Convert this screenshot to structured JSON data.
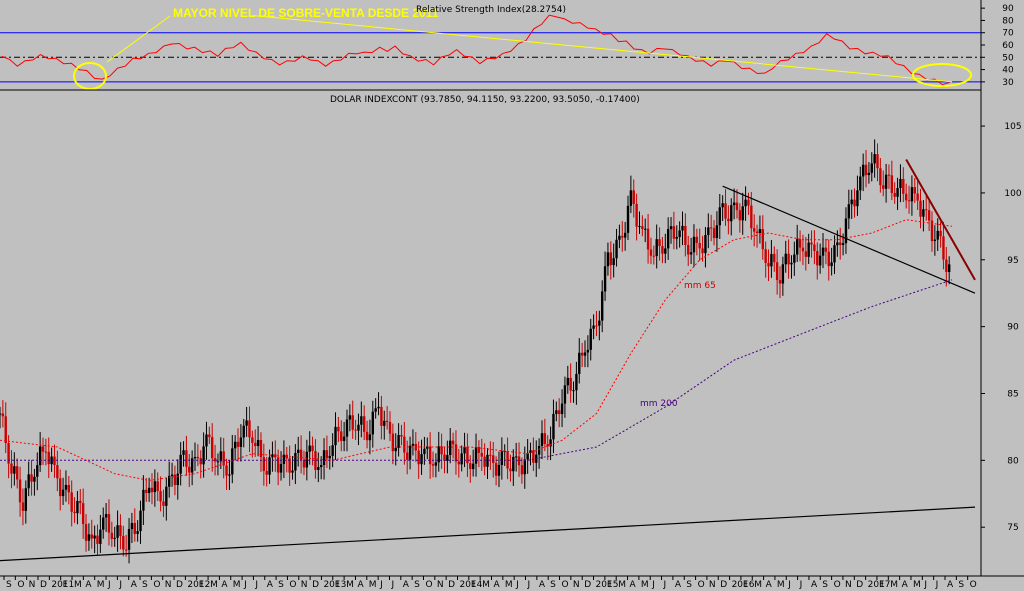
{
  "chart_data": [
    {
      "type": "line",
      "title": "Relative Strength Index(28.2754)",
      "annotation": "MAYOR NIVEL DE SOBRE-VENTA DESDE 2011",
      "ylim": [
        25,
        95
      ],
      "yticks": [
        30,
        40,
        50,
        60,
        70,
        80,
        90
      ],
      "reference_lines": [
        30,
        50,
        70
      ],
      "last_value": 28.2754,
      "colors": {
        "rsi": "#ff0000",
        "trend": "#ffff00",
        "band": "#0000ff",
        "mid": "#000000"
      },
      "series": [
        {
          "values": [
            52,
            47,
            44,
            46,
            49,
            51,
            50,
            48,
            46,
            44,
            41,
            38,
            34,
            31,
            36,
            40,
            44,
            48,
            50,
            52,
            55,
            58,
            62,
            60,
            58,
            57,
            55,
            54,
            52,
            56,
            59,
            61,
            57,
            53,
            50,
            47,
            45,
            46,
            48,
            50,
            49,
            46,
            44,
            46,
            49,
            52,
            54,
            53,
            55,
            57,
            56,
            58,
            54,
            50,
            48,
            47,
            45,
            49,
            53,
            55,
            52,
            49,
            46,
            48,
            50,
            52,
            56,
            60,
            65,
            72,
            78,
            83,
            84,
            80,
            79,
            77,
            75,
            72,
            70,
            68,
            64,
            62,
            58,
            55,
            54,
            56,
            58,
            55,
            53,
            50,
            48,
            46,
            44,
            46,
            48,
            45,
            42,
            40,
            38,
            36,
            42,
            46,
            49,
            52,
            55,
            58,
            63,
            68,
            66,
            62,
            58,
            56,
            54,
            53,
            52,
            50,
            46,
            42,
            38,
            35,
            33,
            31,
            29,
            28.3
          ]
        }
      ],
      "trendline": {
        "x": [
          "2012-06",
          "2017-07"
        ],
        "y": [
          84,
          30
        ]
      }
    },
    {
      "type": "line",
      "title": "DOLAR INDEXCONT (93.7850, 94.1150, 93.2200, 93.5050, -0.17400)",
      "ylim": [
        71.5,
        106.5
      ],
      "yticks": [
        75,
        80,
        85,
        90,
        95,
        100,
        105
      ],
      "x_range": [
        "2010-08",
        "2017-09"
      ],
      "xticks": [
        "S",
        "O",
        "N",
        "D",
        "2011",
        "F",
        "M",
        "A",
        "M",
        "J",
        "J",
        "A",
        "S",
        "O",
        "N",
        "D",
        "2012",
        "F",
        "M",
        "A",
        "M",
        "J",
        "J",
        "A",
        "S",
        "O",
        "N",
        "D",
        "2013",
        "F",
        "M",
        "A",
        "M",
        "J",
        "J",
        "A",
        "S",
        "O",
        "N",
        "D",
        "2014",
        "F",
        "M",
        "A",
        "M",
        "J",
        "J",
        "A",
        "S",
        "O",
        "N",
        "D",
        "2015",
        "F",
        "M",
        "A",
        "M",
        "J",
        "J",
        "A",
        "S",
        "O",
        "N",
        "D",
        "2016",
        "F",
        "M",
        "A",
        "M",
        "J",
        "J",
        "A",
        "S",
        "O",
        "N",
        "D",
        "2017",
        "F",
        "M",
        "A",
        "M",
        "J",
        "J",
        "A",
        "S",
        "O"
      ],
      "colors": {
        "up": "#000000",
        "down": "#cc0000",
        "mm65": "#ff0000",
        "mm200": "#4b0082",
        "trend_long": "#000000",
        "trend_short": "#000000",
        "trend_recent": "#8b0000"
      },
      "series": [
        {
          "name": "DOLAR INDEXCONT",
          "x": [
            "2010-08",
            "2010-09",
            "2010-10",
            "2010-11",
            "2010-12",
            "2011-01",
            "2011-02",
            "2011-03",
            "2011-04",
            "2011-05",
            "2011-06",
            "2011-07",
            "2011-08",
            "2011-09",
            "2011-10",
            "2011-11",
            "2011-12",
            "2012-01",
            "2012-02",
            "2012-03",
            "2012-04",
            "2012-05",
            "2012-06",
            "2012-07",
            "2012-08",
            "2012-09",
            "2012-10",
            "2012-11",
            "2012-12",
            "2013-01",
            "2013-02",
            "2013-03",
            "2013-04",
            "2013-05",
            "2013-06",
            "2013-07",
            "2013-08",
            "2013-09",
            "2013-10",
            "2013-11",
            "2013-12",
            "2014-01",
            "2014-02",
            "2014-03",
            "2014-04",
            "2014-05",
            "2014-06",
            "2014-07",
            "2014-08",
            "2014-09",
            "2014-10",
            "2014-11",
            "2014-12",
            "2015-01",
            "2015-02",
            "2015-03",
            "2015-04",
            "2015-05",
            "2015-06",
            "2015-07",
            "2015-08",
            "2015-09",
            "2015-10",
            "2015-11",
            "2015-12",
            "2016-01",
            "2016-02",
            "2016-03",
            "2016-04",
            "2016-05",
            "2016-06",
            "2016-07",
            "2016-08",
            "2016-09",
            "2016-10",
            "2016-11",
            "2016-12",
            "2017-01",
            "2017-02",
            "2017-03",
            "2017-04",
            "2017-05",
            "2017-06",
            "2017-07"
          ],
          "values": [
            83.5,
            79.5,
            77.0,
            79.5,
            81.0,
            78.5,
            77.0,
            76.0,
            73.5,
            75.5,
            74.5,
            74.0,
            75.5,
            78.5,
            77.0,
            78.5,
            80.0,
            79.5,
            81.5,
            80.0,
            79.5,
            82.5,
            82.0,
            79.5,
            80.0,
            79.5,
            80.0,
            80.5,
            79.5,
            81.5,
            82.5,
            83.0,
            82.0,
            84.0,
            81.5,
            81.0,
            80.5,
            80.5,
            80.0,
            81.0,
            80.5,
            80.0,
            80.5,
            79.5,
            80.0,
            79.5,
            80.0,
            81.0,
            82.0,
            85.0,
            86.0,
            88.5,
            90.0,
            95.0,
            96.0,
            99.5,
            97.0,
            95.5,
            96.5,
            97.5,
            96.0,
            96.0,
            97.0,
            98.5,
            98.5,
            99.0,
            97.0,
            95.0,
            94.0,
            95.5,
            96.0,
            95.5,
            95.0,
            95.5,
            98.5,
            101.0,
            102.5,
            101.0,
            100.5,
            100.0,
            99.5,
            97.5,
            96.0,
            93.5
          ]
        },
        {
          "name": "mm 65",
          "x": [
            "2010-08",
            "2011-01",
            "2011-06",
            "2011-09",
            "2012-01",
            "2012-06",
            "2013-01",
            "2013-06",
            "2014-01",
            "2014-06",
            "2014-09",
            "2014-12",
            "2015-03",
            "2015-06",
            "2015-09",
            "2015-12",
            "2016-03",
            "2016-06",
            "2016-09",
            "2016-12",
            "2017-03",
            "2017-07"
          ],
          "values": [
            81.5,
            81.0,
            79.0,
            78.5,
            79.0,
            80.5,
            80.0,
            81.0,
            81.0,
            80.5,
            81.5,
            83.5,
            88.0,
            92.0,
            95.0,
            96.5,
            97.0,
            96.5,
            96.5,
            97.0,
            98.0,
            97.5
          ]
        },
        {
          "name": "mm 200",
          "x": [
            "2010-08",
            "2011-06",
            "2012-01",
            "2012-06",
            "2013-01",
            "2013-06",
            "2014-01",
            "2014-06",
            "2014-12",
            "2015-06",
            "2015-12",
            "2016-06",
            "2016-12",
            "2017-07"
          ],
          "values": [
            80.0,
            80.0,
            80.0,
            80.0,
            80.0,
            80.0,
            80.0,
            80.0,
            81.0,
            84.0,
            87.5,
            89.5,
            91.5,
            93.5
          ]
        }
      ],
      "labels": {
        "mm65": "mm 65",
        "mm200": "mm 200"
      },
      "trendlines": [
        {
          "x": [
            "2010-08",
            "2017-09"
          ],
          "y": [
            72.5,
            76.5
          ]
        },
        {
          "x": [
            "2015-11",
            "2017-09"
          ],
          "y": [
            100.5,
            92.5
          ]
        },
        {
          "x": [
            "2017-03",
            "2017-09"
          ],
          "y": [
            102.5,
            93.5
          ]
        }
      ]
    }
  ]
}
